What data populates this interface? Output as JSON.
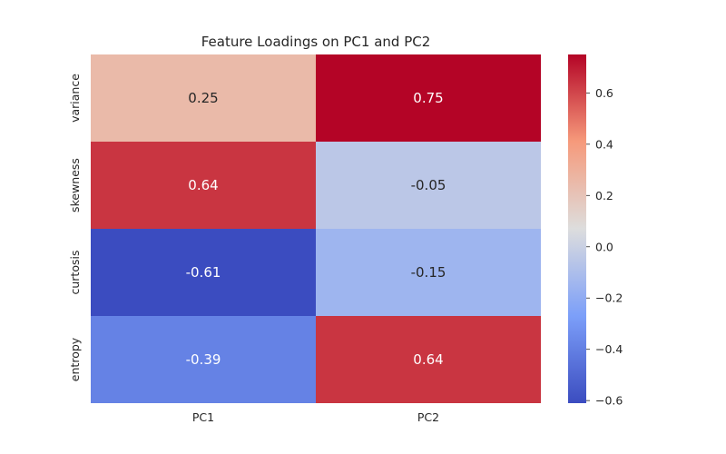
{
  "chart_data": {
    "type": "heatmap",
    "title": "Feature Loadings on PC1 and PC2",
    "xlabel": "",
    "ylabel": "",
    "columns": [
      "PC1",
      "PC2"
    ],
    "rows": [
      "variance",
      "skewness",
      "curtosis",
      "entropy"
    ],
    "values": [
      [
        0.25,
        0.75
      ],
      [
        0.64,
        -0.05
      ],
      [
        -0.61,
        -0.15
      ],
      [
        -0.39,
        0.64
      ]
    ],
    "cell_labels": [
      [
        "0.25",
        "0.75"
      ],
      [
        "0.64",
        "-0.05"
      ],
      [
        "-0.61",
        "-0.15"
      ],
      [
        "-0.39",
        "0.64"
      ]
    ],
    "colormap": "coolwarm",
    "vmin": -0.61,
    "vmax": 0.75,
    "colorbar_ticks": [
      0.6,
      0.4,
      0.2,
      0.0,
      -0.2,
      -0.4,
      -0.6
    ],
    "colorbar_tick_labels": [
      "0.6",
      "0.4",
      "0.2",
      "0.0",
      "−0.2",
      "−0.4",
      "−0.6"
    ],
    "colorbar_placement": "right",
    "grid": false
  }
}
